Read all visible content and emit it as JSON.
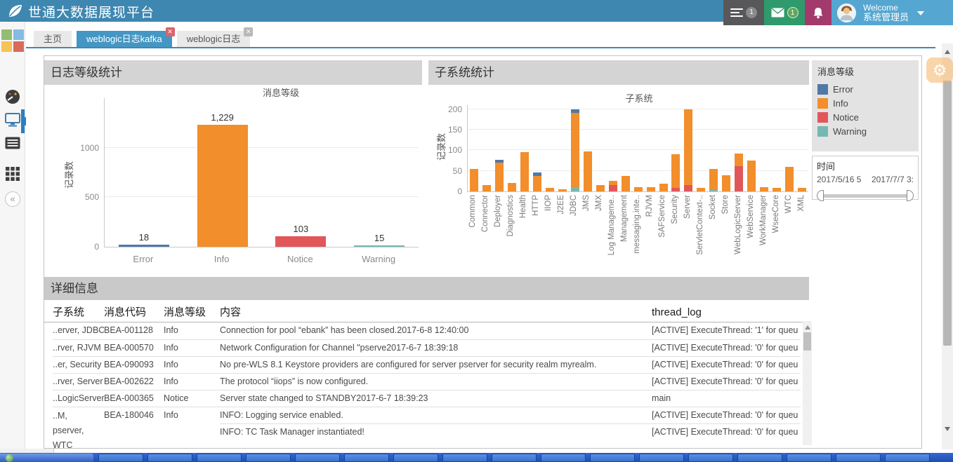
{
  "header": {
    "title": "世通大数据展现平台",
    "welcome_line1": "Welcome",
    "welcome_line2": "系统管理员",
    "menu_badge": "1",
    "mail_badge": "1"
  },
  "tabs": [
    {
      "label": "主页",
      "active": false,
      "closable": false
    },
    {
      "label": "weblogic日志kafka",
      "active": true,
      "closable": true
    },
    {
      "label": "weblogic日志",
      "active": false,
      "closable": true
    }
  ],
  "panels": {
    "log_level_title": "日志等级统计",
    "subsystem_title": "子系统统计",
    "detail_title": "详细信息"
  },
  "chart_data": [
    {
      "type": "bar",
      "title": "消息等级",
      "ylabel": "记录数",
      "categories": [
        "Error",
        "Info",
        "Notice",
        "Warning"
      ],
      "values": [
        18,
        1229,
        103,
        15
      ],
      "value_labels": [
        "18",
        "1,229",
        "103",
        "15"
      ],
      "colors": [
        "#4e79a7",
        "#f28e2b",
        "#e15759",
        "#76b7b2"
      ],
      "yticks": [
        0,
        500,
        1000
      ],
      "ylim": [
        0,
        1500
      ],
      "grid": true,
      "legend_position": "none"
    },
    {
      "type": "stacked-bar",
      "title": "子系统",
      "ylabel": "记录数",
      "categories": [
        "Common",
        "Connector",
        "Deployer",
        "Diagnostics",
        "Health",
        "HTTP",
        "IIOP",
        "J2EE",
        "JDBC",
        "JMS",
        "JMX",
        "Log Manageme..",
        "Management",
        "messaging.inte..",
        "RJVM",
        "SAFService",
        "Security",
        "Server",
        "ServletContext-..",
        "Socket",
        "Store",
        "WebLogicServer",
        "WebService",
        "WorkManager",
        "WseeCore",
        "WTC",
        "XML"
      ],
      "series": [
        {
          "name": "Warning",
          "color": "#76b7b2",
          "values": [
            0,
            0,
            0,
            0,
            0,
            0,
            0,
            0,
            11,
            0,
            0,
            0,
            0,
            0,
            0,
            0,
            0,
            0,
            0,
            4,
            0,
            0,
            0,
            0,
            0,
            0,
            0
          ]
        },
        {
          "name": "Notice",
          "color": "#e15759",
          "values": [
            0,
            0,
            0,
            0,
            0,
            0,
            0,
            0,
            0,
            0,
            0,
            16,
            0,
            0,
            0,
            0,
            9,
            16,
            0,
            0,
            0,
            62,
            0,
            0,
            0,
            0,
            0
          ]
        },
        {
          "name": "Info",
          "color": "#f28e2b",
          "values": [
            54,
            15,
            70,
            20,
            96,
            38,
            8,
            5,
            181,
            98,
            15,
            10,
            38,
            10,
            10,
            19,
            81,
            184,
            8,
            50,
            39,
            30,
            76,
            10,
            8,
            60,
            8
          ]
        },
        {
          "name": "Error",
          "color": "#4e79a7",
          "values": [
            0,
            0,
            7,
            0,
            0,
            8,
            0,
            0,
            8,
            0,
            0,
            0,
            0,
            0,
            0,
            0,
            0,
            0,
            0,
            0,
            0,
            0,
            0,
            0,
            0,
            0,
            0
          ]
        }
      ],
      "yticks": [
        0,
        50,
        100,
        150,
        200
      ],
      "ylim": [
        0,
        210
      ],
      "grid": true,
      "legend_position": "right-panel"
    }
  ],
  "legend": {
    "title": "消息等级",
    "items": [
      {
        "label": "Error",
        "color": "#4e79a7"
      },
      {
        "label": "Info",
        "color": "#f28e2b"
      },
      {
        "label": "Notice",
        "color": "#e15759"
      },
      {
        "label": "Warning",
        "color": "#76b7b2"
      }
    ]
  },
  "time_filter": {
    "title": "时间",
    "start_label": "2017/5/16 5",
    "end_label": "2017/7/7 3:"
  },
  "table": {
    "columns": [
      "子系统",
      "消息代码",
      "消息等级",
      "内容",
      "thread_log"
    ],
    "rows": [
      {
        "subsystem": "..erver, JDBC",
        "code": "BEA-001128",
        "level": "Info",
        "content": "Connection for pool “ebank” has been closed.2017-6-8 12:40:00",
        "thread": "[ACTIVE] ExecuteThread: '1' for queu"
      },
      {
        "subsystem": "..rver, RJVM",
        "code": "BEA-000570",
        "level": "Info",
        "content": "Network Configuration for Channel \"pserve2017-6-7 18:39:18",
        "thread": "[ACTIVE] ExecuteThread: '0' for queu"
      },
      {
        "subsystem": "..er, Security",
        "code": "BEA-090093",
        "level": "Info",
        "content": "No pre-WLS 8.1 Keystore providers are configured for server pserver for security realm myrealm.",
        "thread": "[ACTIVE] ExecuteThread: '0' for queu"
      },
      {
        "subsystem": "..rver, Server",
        "code": "BEA-002622",
        "level": "Info",
        "content": "The protocol “iiops” is now configured.",
        "thread": "[ACTIVE] ExecuteThread: '0' for queu"
      },
      {
        "subsystem": "..LogicServer",
        "code": "BEA-000365",
        "level": "Notice",
        "content": "Server state changed to STANDBY2017-6-7 18:39:23",
        "thread": "main"
      },
      {
        "subsystem": "..M, pserver, WTC",
        "code": "BEA-180046",
        "level": "Info",
        "content": "INFO: Logging service enabled.",
        "thread": "[ACTIVE] ExecuteThread: '0' for queu",
        "wrap": true
      },
      {
        "subsystem": "",
        "code": "",
        "level": "",
        "content": "INFO: TC Task Manager instantiated!",
        "thread": "[ACTIVE] ExecuteThread: '0' for queu",
        "continuation": true
      }
    ]
  },
  "colors": {
    "header_bg": "#3e87b0",
    "active_tab": "#4496c3",
    "error": "#4e79a7",
    "info": "#f28e2b",
    "notice": "#e15759",
    "warning": "#76b7b2"
  },
  "taskbar": {
    "button_count": 17
  }
}
